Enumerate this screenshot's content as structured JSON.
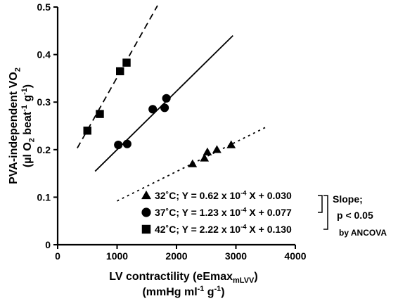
{
  "chart_data": {
    "type": "scatter",
    "title": "",
    "xlabel_line1_main": "LV contractility (eEmax",
    "xlabel_line1_sub": "mLVV",
    "xlabel_line1_close": ")",
    "xlabel_line2": "(mmHg ml-1 g-1)",
    "ylabel_line1": "PVA-independent VO2",
    "ylabel_line2": "(µl O2 beat-1 g-1)",
    "xlim": [
      0,
      4000
    ],
    "ylim": [
      0,
      0.5
    ],
    "x_ticks": [
      0,
      1000,
      2000,
      3000,
      4000
    ],
    "y_ticks": [
      0,
      0.1,
      0.2,
      0.3,
      0.4,
      0.5
    ],
    "x_tick_labels": [
      "0",
      "1000",
      "2000",
      "3000",
      "4000"
    ],
    "y_tick_labels": [
      "0",
      "0.1",
      "0.2",
      "0.3",
      "0.4",
      "0.5"
    ],
    "grid": false,
    "series": [
      {
        "name": "32˚C",
        "marker": "triangle",
        "line_style": "dotted",
        "equation": "Y = 0.62 x 10-4 X + 0.030",
        "slope": 6.2e-05,
        "intercept": 0.03,
        "fit_x_range": [
          1000,
          3500
        ],
        "x": [
          2270,
          2470,
          2520,
          2680,
          2920
        ],
        "y": [
          0.17,
          0.182,
          0.195,
          0.2,
          0.21
        ]
      },
      {
        "name": "37˚C",
        "marker": "circle",
        "line_style": "solid",
        "equation": "Y = 1.23 x 10-4 X + 0.077",
        "slope": 0.000123,
        "intercept": 0.077,
        "fit_x_range": [
          630,
          2950
        ],
        "x": [
          1020,
          1170,
          1600,
          1800,
          1830
        ],
        "y": [
          0.21,
          0.212,
          0.285,
          0.288,
          0.308
        ]
      },
      {
        "name": "42˚C",
        "marker": "square",
        "line_style": "dashed",
        "equation": "Y = 2.22 x 10-4 X + 0.130",
        "slope": 0.000222,
        "intercept": 0.13,
        "fit_x_range": [
          330,
          1680
        ],
        "x": [
          500,
          710,
          1050,
          1160
        ],
        "y": [
          0.24,
          0.275,
          0.365,
          0.383
        ]
      }
    ],
    "annotation": {
      "line1": "Slope;",
      "line2": "p < 0.05",
      "line3": "by ANCOVA"
    }
  }
}
